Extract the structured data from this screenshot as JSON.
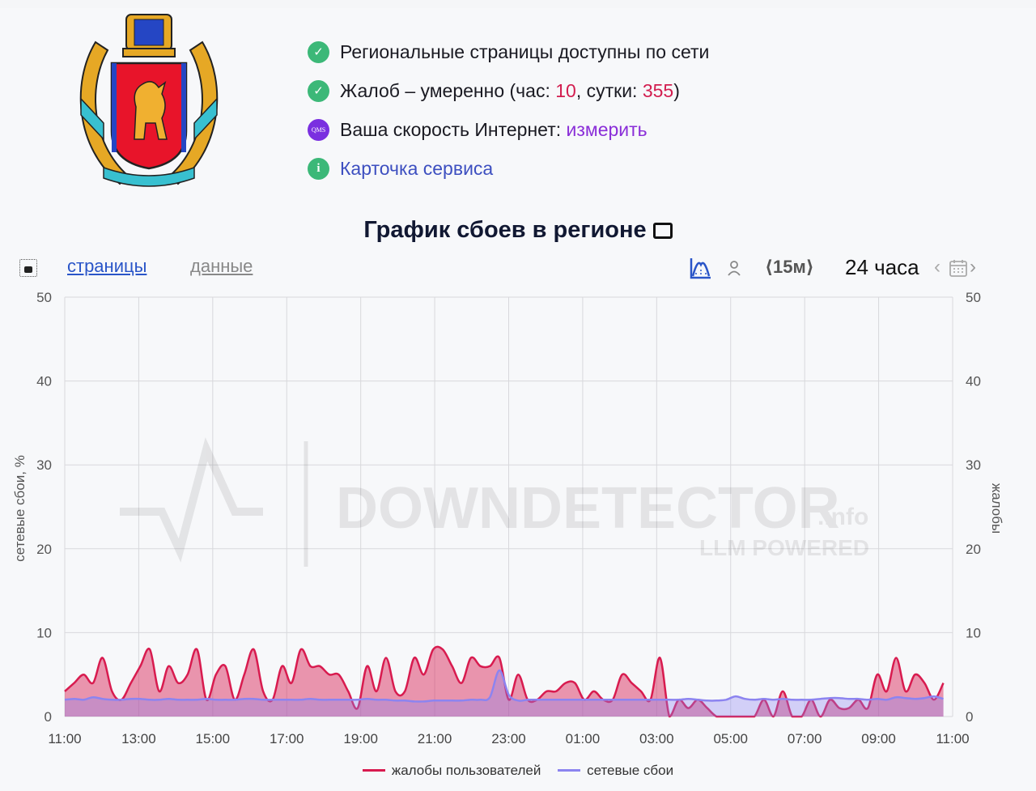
{
  "status": {
    "rows": [
      {
        "icon": "check-icon",
        "text": "Региональные страницы доступны по сети"
      },
      {
        "icon": "check-icon",
        "prefix": "Жалоб – умеренно (час: ",
        "hour": "10",
        "mid": ", сутки: ",
        "day": "355",
        "suffix": ")"
      },
      {
        "icon": "qms-icon",
        "icon_text": "QMS",
        "prefix": "Ваша скорость Интернет: ",
        "link": "измерить"
      },
      {
        "icon": "info-icon",
        "icon_text": "i",
        "link": "Карточка сервиса"
      }
    ]
  },
  "title": "График сбоев в регионе",
  "toolbar": {
    "tab_pages": "страницы",
    "tab_data": "данные",
    "step": "⟨15м⟩",
    "range": "24 часа",
    "prev": "‹",
    "next": "›"
  },
  "colors": {
    "complaints": "#d81b4f",
    "outages": "#8c84f0",
    "green": "#3cb878",
    "accent_blue": "#2a55c8"
  },
  "chart_data": {
    "type": "area",
    "xlabel": "",
    "ylabel": "сетевые сбои, %",
    "y2label": "жалобы",
    "ylim": [
      0,
      50
    ],
    "yticks": [
      0,
      10,
      20,
      30,
      40,
      50
    ],
    "xticks": [
      "11:00",
      "13:00",
      "15:00",
      "17:00",
      "19:00",
      "21:00",
      "23:00",
      "01:00",
      "03:00",
      "05:00",
      "07:00",
      "09:00",
      "11:00"
    ],
    "grid": true,
    "legend_position": "bottom",
    "watermark": {
      "main": "DOWNDETECTOR",
      "suffix": ".info",
      "sub": "LLM POWERED"
    },
    "series": [
      {
        "name": "жалобы пользователей",
        "values": [
          3,
          4,
          5,
          4,
          7,
          3,
          2,
          4,
          6,
          8,
          3,
          6,
          4,
          5,
          8,
          2,
          5,
          6,
          2,
          5,
          8,
          3,
          2,
          6,
          4,
          8,
          6,
          6,
          5,
          5,
          3,
          1,
          6,
          3,
          7,
          3,
          3,
          7,
          5,
          8,
          8,
          6,
          4,
          7,
          6,
          6,
          7,
          2,
          5,
          2,
          2,
          3,
          3,
          4,
          4,
          2,
          3,
          2,
          2,
          5,
          4,
          3,
          2,
          7,
          0,
          2,
          1,
          2,
          1,
          0,
          0,
          0,
          0,
          0,
          2,
          0,
          3,
          0,
          0,
          2,
          0,
          2,
          1,
          1,
          2,
          1,
          5,
          3,
          7,
          3,
          5,
          4,
          2,
          4
        ]
      },
      {
        "name": "сетевые сбои",
        "values": [
          2,
          2.1,
          2,
          2.3,
          2.1,
          2,
          2,
          2.1,
          2.1,
          2,
          2,
          2.1,
          2,
          2,
          2,
          2.1,
          2,
          2,
          2,
          2.1,
          2.1,
          2,
          2,
          2,
          2,
          2,
          2.1,
          2,
          2,
          2,
          2,
          2,
          2.1,
          2,
          2,
          1.9,
          1.9,
          1.8,
          1.8,
          1.9,
          1.9,
          1.9,
          1.9,
          2,
          2,
          2.3,
          5.5,
          2.6,
          1.9,
          2,
          2,
          2,
          2,
          2,
          2,
          2,
          2,
          2,
          2,
          2,
          2,
          2,
          2,
          2,
          2,
          2,
          2.1,
          2,
          1.9,
          1.9,
          2,
          2.4,
          2.1,
          2,
          2.1,
          2,
          2.1,
          2,
          2,
          2,
          2.1,
          2.2,
          2.2,
          2.1,
          2.1,
          2,
          2.1,
          2,
          2.3,
          2.2,
          2.1,
          2.2,
          2.4,
          2.1
        ]
      }
    ]
  }
}
